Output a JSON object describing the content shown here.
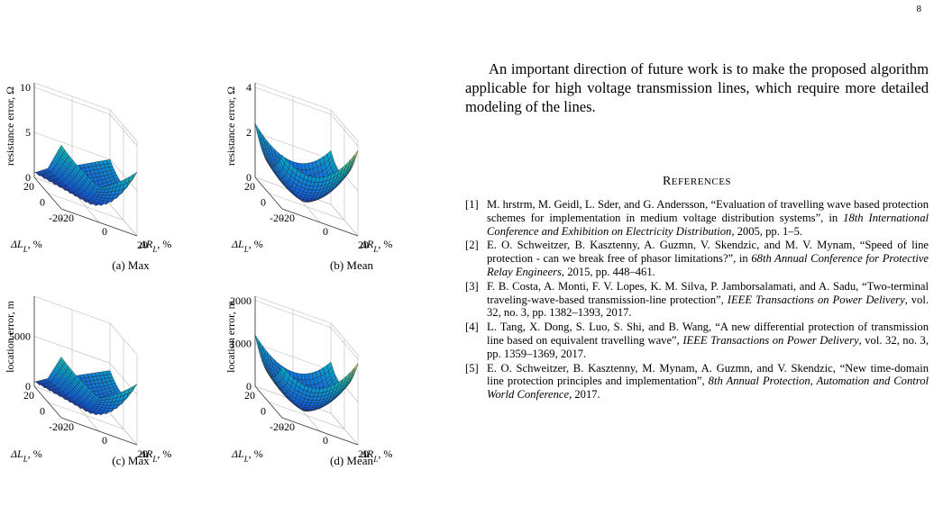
{
  "page_number": "8",
  "figures": [
    {
      "caption": "(a) Max",
      "zlabel": "resistance error, Ω",
      "zticks": [
        "10",
        "5",
        "0"
      ],
      "zmax": 10.5,
      "shape": "max",
      "xlabel_main": "ΔL",
      "xlabel_sub": "L",
      "xlabel_unit": ", %",
      "ylabel_main": "ΔR",
      "ylabel_sub": "L",
      "ylabel_unit": ", %",
      "xticks": [
        "20",
        "0",
        "-20"
      ],
      "yticks": [
        "-20",
        "0",
        "20"
      ]
    },
    {
      "caption": "(b) Mean",
      "zlabel": "resistance error, Ω",
      "zticks": [
        "4",
        "2",
        "0"
      ],
      "zmax": 4.2,
      "shape": "mean",
      "xlabel_main": "ΔL",
      "xlabel_sub": "L",
      "xlabel_unit": ", %",
      "ylabel_main": "ΔR",
      "ylabel_sub": "L",
      "ylabel_unit": ", %",
      "xticks": [
        "20",
        "0",
        "-20"
      ],
      "yticks": [
        "-20",
        "0",
        "20"
      ]
    },
    {
      "caption": "(c) Max",
      "zlabel": "location error, m",
      "zticks": [
        "5000",
        "0"
      ],
      "zmax": 9000,
      "shape": "max",
      "xlabel_main": "ΔL",
      "xlabel_sub": "L",
      "xlabel_unit": ", %",
      "ylabel_main": "ΔR",
      "ylabel_sub": "L",
      "ylabel_unit": ", %",
      "xticks": [
        "20",
        "0",
        "-20"
      ],
      "yticks": [
        "-20",
        "0",
        "20"
      ]
    },
    {
      "caption": "(d) Mean",
      "zlabel": "location error, m",
      "zticks": [
        "2000",
        "1000",
        "0"
      ],
      "zmax": 2100,
      "shape": "mean",
      "xlabel_main": "ΔL",
      "xlabel_sub": "L",
      "xlabel_unit": ", %",
      "ylabel_main": "ΔR",
      "ylabel_sub": "L",
      "ylabel_unit": ", %",
      "xticks": [
        "20",
        "0",
        "-20"
      ],
      "yticks": [
        "-20",
        "0",
        "20"
      ]
    }
  ],
  "conclusion": "An important direction of future work is to make the proposed algorithm applicable for high voltage transmission lines, which require more detailed modeling of the lines.",
  "references_heading_first": "R",
  "references_heading_rest": "EFERENCES",
  "references": [
    {
      "num": "[1]",
      "pre": "M. hrstrm, M. Geidl, L. Sder, and G. Andersson,  “Evaluation of travelling wave based protection schemes for implementation in medium voltage distribution systems”,  in ",
      "venue": "18th International Conference and Exhibition on Electricity Distribution",
      "post": ", 2005, pp. 1–5."
    },
    {
      "num": "[2]",
      "pre": "E. O. Schweitzer, B. Kasztenny, A. Guzmn, V. Skendzic, and M. V. Mynam,  “Speed of line protection - can we break free of phasor limitations?”, in ",
      "venue": "68th Annual Conference for Protective Relay Engineers",
      "post": ", 2015, pp. 448–461."
    },
    {
      "num": "[3]",
      "pre": "F. B. Costa, A. Monti, F. V. Lopes, K. M. Silva, P. Jamborsalamati, and A. Sadu,  “Two-terminal traveling-wave-based transmission-line protection”, ",
      "venue": "IEEE Transactions on Power Delivery",
      "post": ", vol. 32, no. 3, pp. 1382–1393, 2017."
    },
    {
      "num": "[4]",
      "pre": "L. Tang, X. Dong, S. Luo, S. Shi, and B. Wang, “A new differential protection of transmission line based on equivalent travelling wave”, ",
      "venue": "IEEE Transactions on Power Delivery",
      "post": ", vol. 32, no. 3, pp. 1359–1369, 2017."
    },
    {
      "num": "[5]",
      "pre": "E. O. Schweitzer, B. Kasztenny, M. Mynam, A. Guzmn, and V. Skendzic, “New time-domain line protection principles and implementation”, ",
      "venue": "8th Annual Protection, Automation and Control World Conference",
      "post": ", 2017."
    }
  ]
}
